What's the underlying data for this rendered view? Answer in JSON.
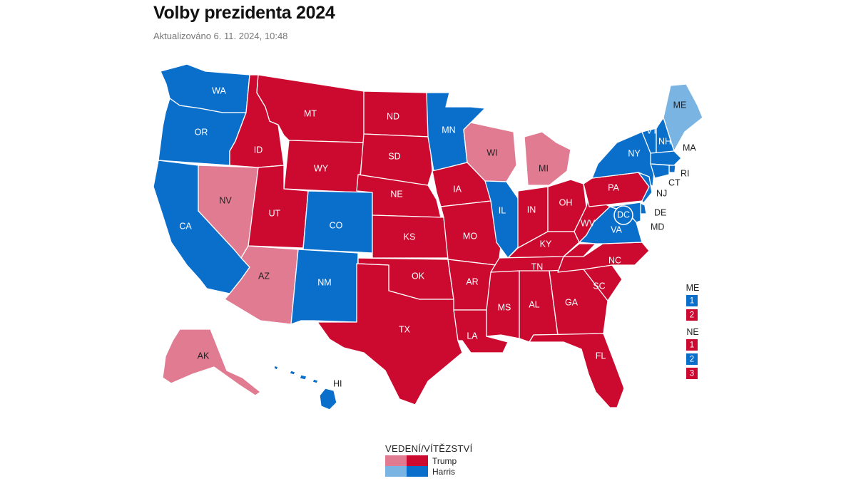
{
  "header": {
    "title": "Volby prezidenta 2024",
    "updated": "Aktualizováno 6. 11. 2024, 10:48"
  },
  "colors": {
    "trump_lead": "#e07b91",
    "trump_win": "#cc0a2f",
    "harris_lead": "#7ab4e3",
    "harris_win": "#0a6ecb"
  },
  "states": [
    {
      "abbr": "WA",
      "status": "harris_win"
    },
    {
      "abbr": "OR",
      "status": "harris_win"
    },
    {
      "abbr": "CA",
      "status": "harris_win"
    },
    {
      "abbr": "NV",
      "status": "trump_lead"
    },
    {
      "abbr": "ID",
      "status": "trump_win"
    },
    {
      "abbr": "MT",
      "status": "trump_win"
    },
    {
      "abbr": "WY",
      "status": "trump_win"
    },
    {
      "abbr": "UT",
      "status": "trump_win"
    },
    {
      "abbr": "AZ",
      "status": "trump_lead"
    },
    {
      "abbr": "CO",
      "status": "harris_win"
    },
    {
      "abbr": "NM",
      "status": "harris_win"
    },
    {
      "abbr": "ND",
      "status": "trump_win"
    },
    {
      "abbr": "SD",
      "status": "trump_win"
    },
    {
      "abbr": "NE",
      "status": "trump_win"
    },
    {
      "abbr": "KS",
      "status": "trump_win"
    },
    {
      "abbr": "OK",
      "status": "trump_win"
    },
    {
      "abbr": "TX",
      "status": "trump_win"
    },
    {
      "abbr": "MN",
      "status": "harris_win"
    },
    {
      "abbr": "IA",
      "status": "trump_win"
    },
    {
      "abbr": "MO",
      "status": "trump_win"
    },
    {
      "abbr": "AR",
      "status": "trump_win"
    },
    {
      "abbr": "LA",
      "status": "trump_win"
    },
    {
      "abbr": "WI",
      "status": "trump_lead"
    },
    {
      "abbr": "IL",
      "status": "harris_win"
    },
    {
      "abbr": "MI",
      "status": "trump_lead"
    },
    {
      "abbr": "IN",
      "status": "trump_win"
    },
    {
      "abbr": "OH",
      "status": "trump_win"
    },
    {
      "abbr": "KY",
      "status": "trump_win"
    },
    {
      "abbr": "TN",
      "status": "trump_win"
    },
    {
      "abbr": "MS",
      "status": "trump_win"
    },
    {
      "abbr": "AL",
      "status": "trump_win"
    },
    {
      "abbr": "GA",
      "status": "trump_win"
    },
    {
      "abbr": "FL",
      "status": "trump_win"
    },
    {
      "abbr": "SC",
      "status": "trump_win"
    },
    {
      "abbr": "NC",
      "status": "trump_win"
    },
    {
      "abbr": "VA",
      "status": "harris_win"
    },
    {
      "abbr": "WV",
      "status": "trump_win"
    },
    {
      "abbr": "PA",
      "status": "trump_win"
    },
    {
      "abbr": "NY",
      "status": "harris_win"
    },
    {
      "abbr": "VT",
      "status": "harris_win"
    },
    {
      "abbr": "NH",
      "status": "harris_win"
    },
    {
      "abbr": "ME",
      "status": "harris_lead"
    },
    {
      "abbr": "MA",
      "status": "harris_win"
    },
    {
      "abbr": "RI",
      "status": "harris_win"
    },
    {
      "abbr": "CT",
      "status": "harris_win"
    },
    {
      "abbr": "NJ",
      "status": "harris_win"
    },
    {
      "abbr": "DE",
      "status": "harris_win"
    },
    {
      "abbr": "MD",
      "status": "harris_win"
    },
    {
      "abbr": "DC",
      "status": "harris_win"
    },
    {
      "abbr": "AK",
      "status": "trump_lead"
    },
    {
      "abbr": "HI",
      "status": "harris_win"
    }
  ],
  "districts": {
    "ME": {
      "label": "ME",
      "items": [
        {
          "num": "1",
          "status": "harris_win"
        },
        {
          "num": "2",
          "status": "trump_win"
        }
      ]
    },
    "NE": {
      "label": "NE",
      "items": [
        {
          "num": "1",
          "status": "trump_win"
        },
        {
          "num": "2",
          "status": "harris_win"
        },
        {
          "num": "3",
          "status": "trump_win"
        }
      ]
    }
  },
  "legend": {
    "title": "VEDENÍ/VÍTĚZSTVÍ",
    "trump": "Trump",
    "harris": "Harris"
  }
}
